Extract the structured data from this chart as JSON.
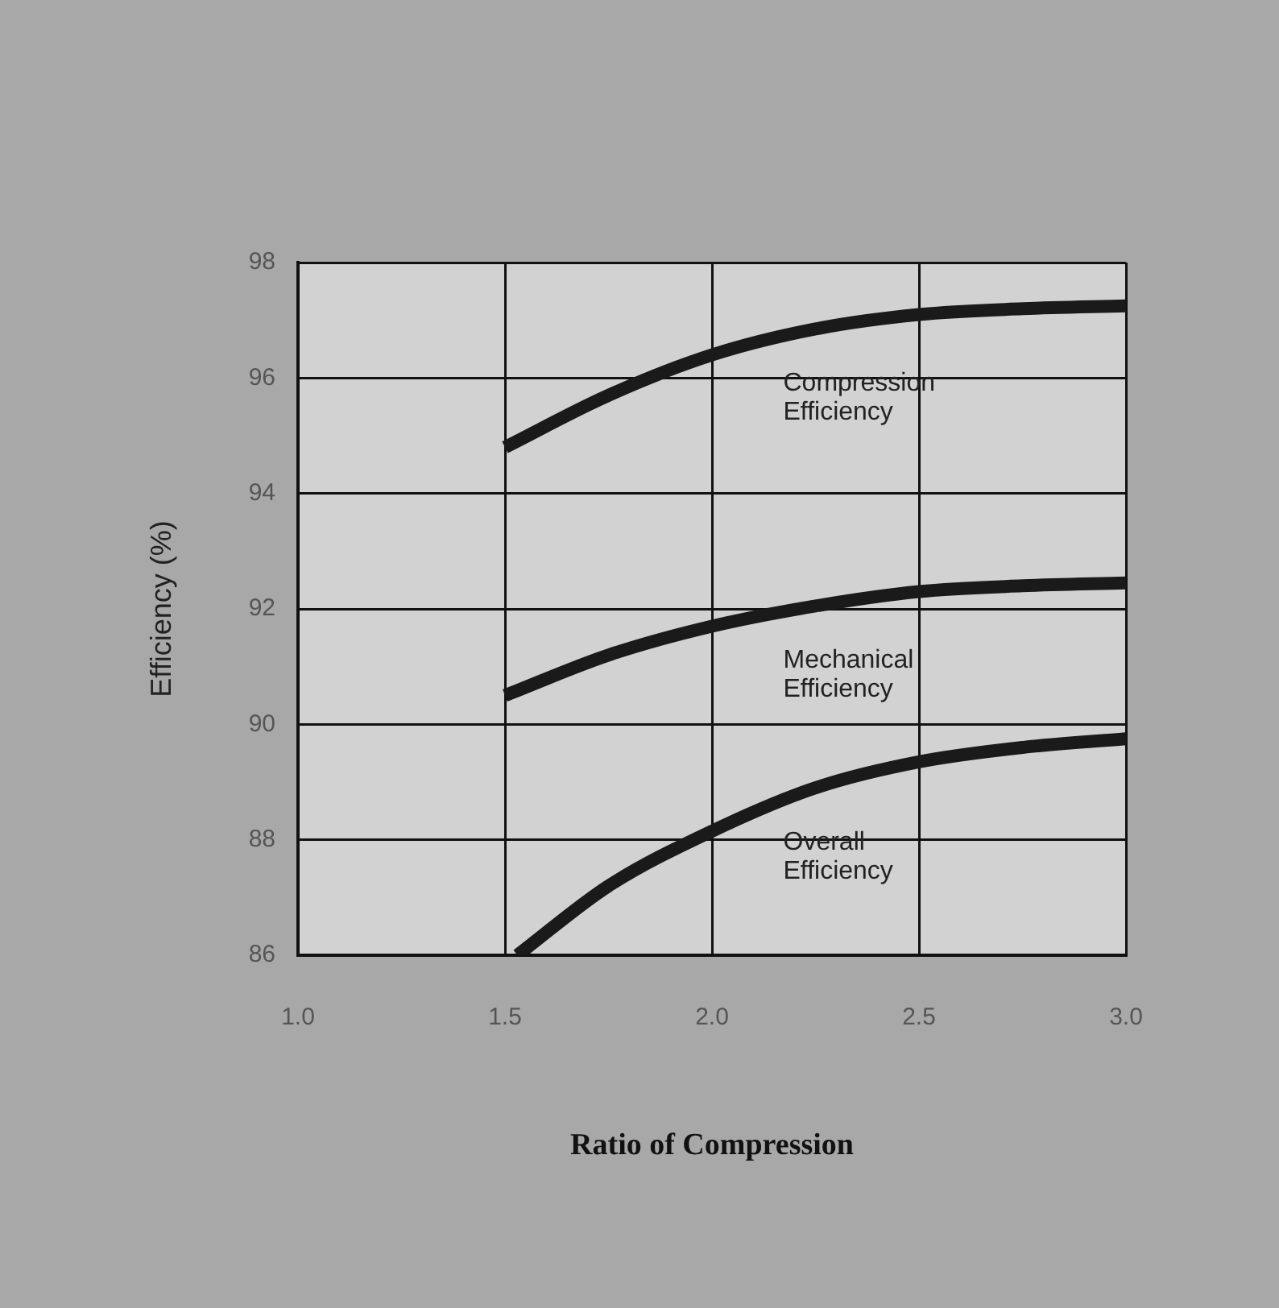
{
  "chart_data": {
    "type": "line",
    "xlabel": "Ratio of Compression",
    "ylabel": "Efficiency (%)",
    "xlim": [
      1.0,
      3.0
    ],
    "xticks": [
      {
        "value": 1.0,
        "label": "1.0"
      },
      {
        "value": 1.5,
        "label": "1.5"
      },
      {
        "value": 2.0,
        "label": "2.0"
      },
      {
        "value": 2.5,
        "label": "2.5"
      },
      {
        "value": 3.0,
        "label": "3.0"
      }
    ],
    "ylim": [
      86,
      98
    ],
    "yticks": [
      86,
      88,
      90,
      92,
      94,
      96,
      98
    ],
    "grid": true,
    "legend": false,
    "marker": "none",
    "line_style": "solid",
    "series": [
      {
        "name": "Compression Efficiency",
        "color": "#1a1a1a",
        "x": [
          1.5,
          1.75,
          2.0,
          2.25,
          2.5,
          2.75,
          3.0
        ],
        "values": [
          94.8,
          95.7,
          96.4,
          96.85,
          97.1,
          97.2,
          97.25
        ]
      },
      {
        "name": "Mechanical Efficiency",
        "color": "#1a1a1a",
        "x": [
          1.5,
          1.75,
          2.0,
          2.25,
          2.5,
          2.75,
          3.0
        ],
        "values": [
          90.5,
          91.2,
          91.7,
          92.05,
          92.3,
          92.4,
          92.45
        ]
      },
      {
        "name": "Overall Efficiency",
        "color": "#1a1a1a",
        "x": [
          1.53,
          1.75,
          2.0,
          2.25,
          2.5,
          2.75,
          3.0
        ],
        "values": [
          86,
          87.2,
          88.15,
          88.9,
          89.35,
          89.6,
          89.75
        ]
      }
    ]
  }
}
